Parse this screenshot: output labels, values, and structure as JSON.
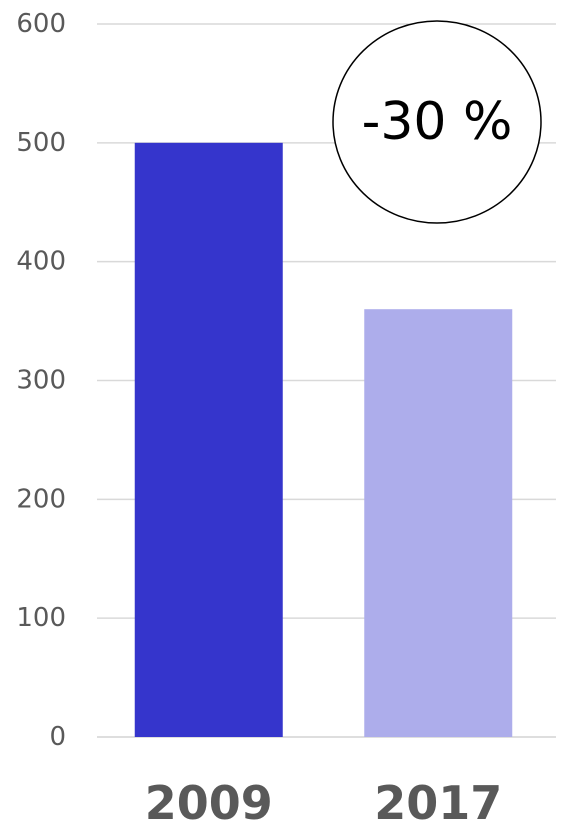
{
  "chart_data": {
    "type": "bar",
    "categories": [
      "2009",
      "2017"
    ],
    "values": [
      500,
      360
    ],
    "colors": [
      "#3535cc",
      "#adadeb"
    ],
    "title": "",
    "xlabel": "",
    "ylabel": "",
    "ylim": [
      0,
      600
    ],
    "yticks": [
      "0",
      "100",
      "200",
      "300",
      "400",
      "500",
      "600"
    ],
    "grid": true,
    "legend": "none",
    "annotation": "-30 %"
  }
}
